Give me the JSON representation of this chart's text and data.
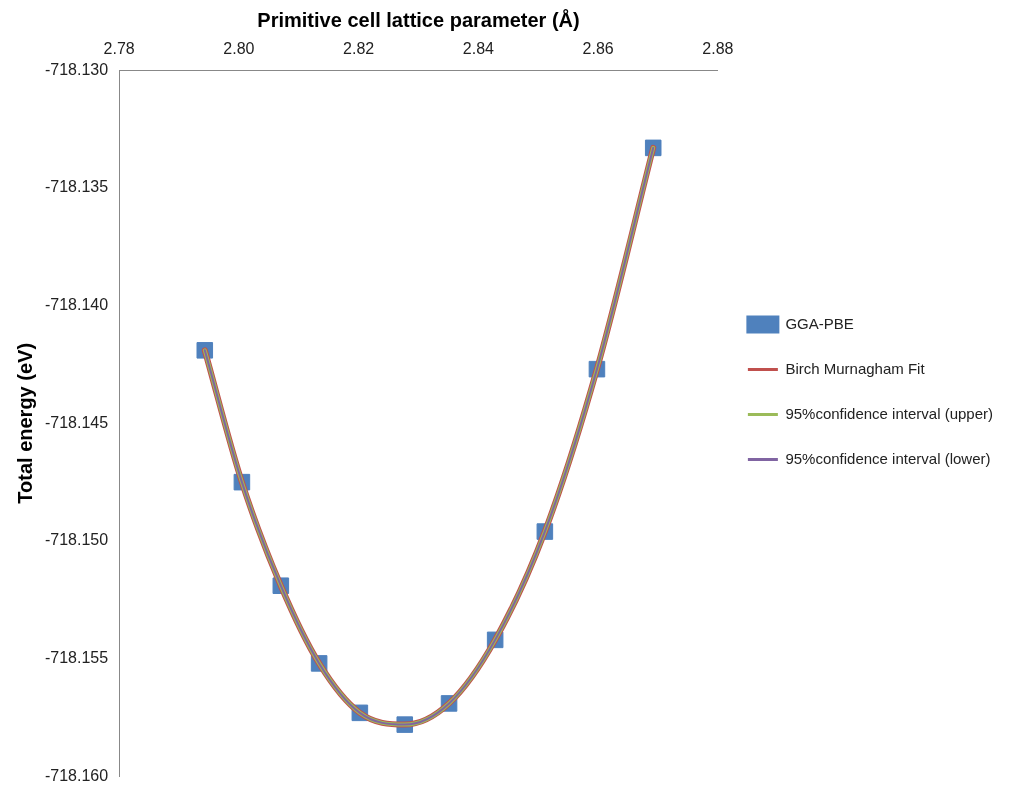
{
  "chart_data": {
    "type": "scatter",
    "xlabel": "Primitive cell lattice parameter (Å)",
    "ylabel": "Total energy (eV)",
    "xlim": [
      2.78,
      2.88
    ],
    "xticks": [
      {
        "value": 2.78,
        "label": "2.78"
      },
      {
        "value": 2.8,
        "label": "2.80"
      },
      {
        "value": 2.82,
        "label": "2.82"
      },
      {
        "value": 2.84,
        "label": "2.84"
      },
      {
        "value": 2.86,
        "label": "2.86"
      },
      {
        "value": 2.88,
        "label": "2.88"
      }
    ],
    "ylim": [
      -718.16,
      -718.13
    ],
    "yticks": [
      {
        "value": -718.16,
        "label": "-718.160"
      },
      {
        "value": -718.155,
        "label": "-718.155"
      },
      {
        "value": -718.15,
        "label": "-718.150"
      },
      {
        "value": -718.145,
        "label": "-718.145"
      },
      {
        "value": -718.14,
        "label": "-718.140"
      },
      {
        "value": -718.135,
        "label": "-718.135"
      },
      {
        "value": -718.13,
        "label": "-718.130"
      }
    ],
    "grid": false,
    "legend": "right",
    "x": [
      2.7943,
      2.8005,
      2.807,
      2.8134,
      2.8202,
      2.8277,
      2.8351,
      2.8428,
      2.8511,
      2.8598,
      2.8692
    ],
    "series": [
      {
        "name": "GGA-PBE",
        "type": "scatter",
        "marker": "square",
        "color": "#4f81bd",
        "values": [
          -718.1419,
          -718.1475,
          -718.1519,
          -718.1552,
          -718.1573,
          -718.1578,
          -718.1569,
          -718.1542,
          -718.1496,
          -718.1427,
          -718.1333
        ]
      },
      {
        "name": "Birch Murnagham Fit",
        "type": "line",
        "marker": "none",
        "color": "#c0504d",
        "values": [
          -718.1419,
          -718.1475,
          -718.1519,
          -718.1552,
          -718.1573,
          -718.1578,
          -718.1569,
          -718.1542,
          -718.1496,
          -718.1427,
          -718.1333
        ]
      },
      {
        "name": "95%confidence interval (upper)",
        "type": "line",
        "marker": "none",
        "color": "#9bbb59",
        "values": [
          -718.1419,
          -718.1475,
          -718.1519,
          -718.1552,
          -718.1573,
          -718.1578,
          -718.1569,
          -718.1542,
          -718.1496,
          -718.1427,
          -718.1333
        ]
      },
      {
        "name": "95%confidence interval (lower)",
        "type": "line",
        "marker": "none",
        "color": "#8064a2",
        "values": [
          -718.1419,
          -718.1475,
          -718.1519,
          -718.1552,
          -718.1573,
          -718.1578,
          -718.1569,
          -718.1542,
          -718.1496,
          -718.1427,
          -718.1333
        ]
      }
    ]
  }
}
